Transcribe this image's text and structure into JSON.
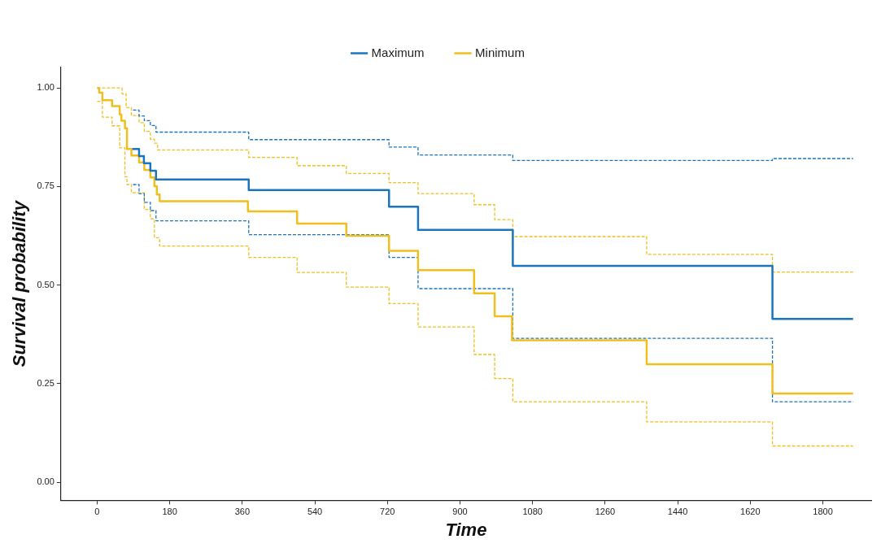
{
  "chart_data": {
    "type": "step",
    "xlabel": "Time",
    "ylabel": "Survival probability",
    "legend": "top",
    "grid": false,
    "marker": "none",
    "xlim": [
      -90,
      1920
    ],
    "xticks": [
      0,
      180,
      360,
      540,
      720,
      900,
      1080,
      1260,
      1440,
      1620,
      1800
    ],
    "ylim": [
      -0.046,
      1.052
    ],
    "yticks": [
      {
        "value": 0,
        "label": "0.00"
      },
      {
        "value": 0.25,
        "label": "0.25"
      },
      {
        "value": 0.5,
        "label": "0.50"
      },
      {
        "value": 0.75,
        "label": "0.75"
      },
      {
        "value": 1,
        "label": "1.00"
      }
    ],
    "series": [
      {
        "name": "Maximum",
        "color": "#1a75bc",
        "line_style": "solid",
        "x": [
          87,
          104,
          116,
          132,
          146,
          376,
          724,
          796,
          1031,
          1675,
          1875
        ],
        "values": [
          0.845,
          0.827,
          0.809,
          0.79,
          0.768,
          0.741,
          0.699,
          0.64,
          0.549,
          0.414,
          0.414
        ]
      },
      {
        "name": "Minimum",
        "color": "#efbf1f",
        "line_style": "solid",
        "x": [
          0,
          5,
          13,
          37,
          56,
          60,
          69,
          74,
          85,
          104,
          117,
          132,
          142,
          148,
          155,
          374,
          496,
          618,
          724,
          796,
          935,
          986,
          1029,
          1363,
          1675,
          1875
        ],
        "values": [
          1,
          0.988,
          0.969,
          0.954,
          0.933,
          0.917,
          0.898,
          0.845,
          0.829,
          0.811,
          0.792,
          0.773,
          0.751,
          0.73,
          0.713,
          0.687,
          0.656,
          0.625,
          0.587,
          0.538,
          0.479,
          0.421,
          0.36,
          0.299,
          0.225,
          0.225
        ]
      },
      {
        "color": "#1a75bc",
        "line_style": "dashed",
        "x": [
          89,
          104,
          117,
          132,
          146,
          376,
          724,
          796,
          1031,
          1675,
          1875
        ],
        "values": [
          0.944,
          0.929,
          0.917,
          0.905,
          0.888,
          0.869,
          0.85,
          0.83,
          0.816,
          0.821,
          0.821
        ]
      },
      {
        "color": "#1a75bc",
        "line_style": "dashed",
        "x": [
          89,
          104,
          117,
          132,
          146,
          376,
          724,
          796,
          1031,
          1675,
          1875
        ],
        "values": [
          0.755,
          0.732,
          0.71,
          0.689,
          0.663,
          0.628,
          0.57,
          0.491,
          0.365,
          0.204,
          0.204
        ]
      },
      {
        "color": "#efbf1f",
        "line_style": "dashed",
        "x": [
          0,
          62,
          72,
          85,
          104,
          117,
          132,
          142,
          150,
          376,
          496,
          618,
          724,
          796,
          935,
          986,
          1031,
          1363,
          1675,
          1875
        ],
        "values": [
          1,
          0.985,
          0.95,
          0.93,
          0.912,
          0.89,
          0.87,
          0.86,
          0.843,
          0.824,
          0.803,
          0.783,
          0.76,
          0.732,
          0.704,
          0.666,
          0.623,
          0.578,
          0.533,
          0.533
        ]
      },
      {
        "color": "#efbf1f",
        "line_style": "dashed",
        "x": [
          0,
          13,
          37,
          56,
          69,
          74,
          85,
          117,
          132,
          142,
          155,
          376,
          496,
          618,
          724,
          796,
          935,
          986,
          1031,
          1363,
          1675,
          1875
        ],
        "values": [
          0.966,
          0.926,
          0.904,
          0.848,
          0.775,
          0.755,
          0.734,
          0.692,
          0.668,
          0.62,
          0.599,
          0.57,
          0.532,
          0.495,
          0.453,
          0.394,
          0.324,
          0.263,
          0.204,
          0.153,
          0.092,
          0.092
        ]
      }
    ]
  }
}
